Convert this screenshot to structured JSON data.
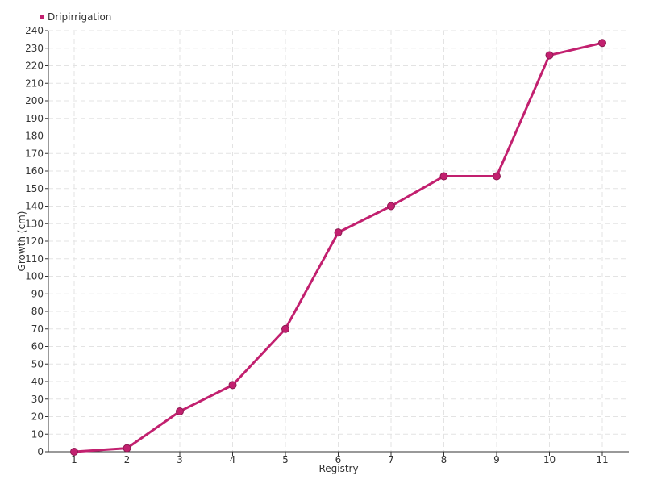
{
  "chart_data": {
    "type": "line",
    "x": [
      "1",
      "2",
      "3",
      "4",
      "5",
      "6",
      "7",
      "8",
      "9",
      "10",
      "11"
    ],
    "series": [
      {
        "name": "Dripirrigation",
        "color": "#c2206f",
        "values": [
          0,
          2,
          23,
          38,
          70,
          125,
          140,
          157,
          157,
          226,
          233
        ]
      }
    ],
    "xlabel": "Registry",
    "ylabel": "Growth (cm)",
    "ylim": [
      0,
      240
    ],
    "yticks": [
      0,
      10,
      20,
      30,
      40,
      50,
      60,
      70,
      80,
      90,
      100,
      110,
      120,
      130,
      140,
      150,
      160,
      170,
      180,
      190,
      200,
      210,
      220,
      230,
      240
    ],
    "grid": true,
    "legend": "top-left"
  }
}
